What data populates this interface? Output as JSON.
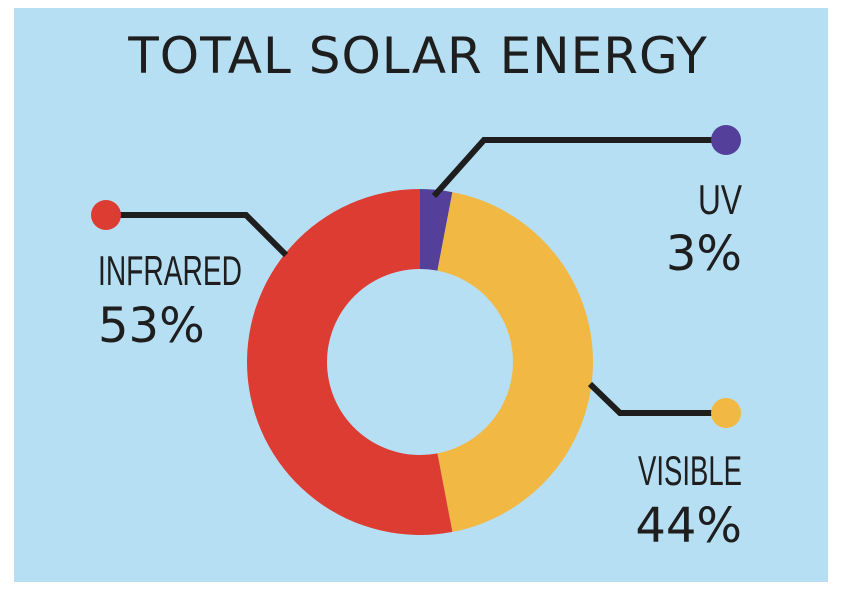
{
  "chart_data": {
    "type": "pie",
    "title": "TOTAL SOLAR ENERGY",
    "slices": [
      {
        "name": "UV",
        "value": 3,
        "label": "UV",
        "value_label": "3%",
        "color": "#54409a"
      },
      {
        "name": "VISIBLE",
        "value": 44,
        "label": "VISIBLE",
        "value_label": "44%",
        "color": "#f1b844"
      },
      {
        "name": "INFRARED",
        "value": 53,
        "label": "INFRARED",
        "value_label": "53%",
        "color": "#dd3c33"
      }
    ],
    "colors": {
      "background": "#b7dff3",
      "text": "#1e1e1e",
      "leader": "#1e1e1e"
    }
  }
}
